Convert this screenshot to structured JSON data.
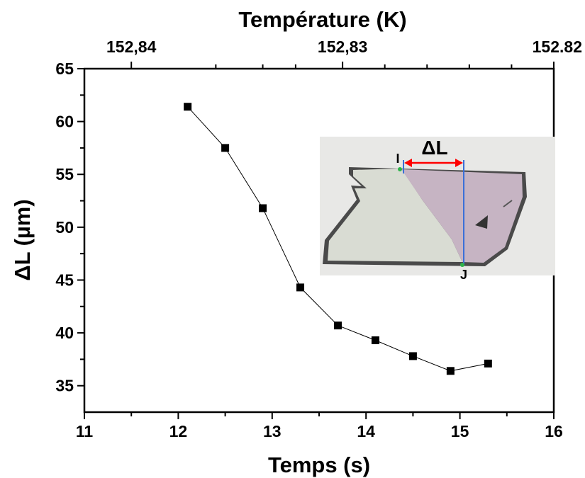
{
  "chart_data": {
    "type": "line",
    "xlabel": "Temps (s)",
    "ylabel": "ΔL (µm)",
    "top_axis_label": "Température (K)",
    "xlim": [
      11,
      16
    ],
    "ylim": [
      32.5,
      65
    ],
    "x_ticks": [
      11,
      12,
      13,
      14,
      15,
      16
    ],
    "y_ticks": [
      35,
      40,
      45,
      50,
      55,
      60,
      65
    ],
    "top_ticks": [
      {
        "x": 11.5,
        "label": "152,84"
      },
      {
        "x": 13.75,
        "label": "152,83"
      },
      {
        "x": 16.0,
        "label": "152.82"
      }
    ],
    "series": [
      {
        "x": [
          12.1,
          12.5,
          12.9,
          13.3,
          13.7,
          14.1,
          14.5,
          14.9,
          15.3
        ],
        "y": [
          61.4,
          57.5,
          51.8,
          44.3,
          40.7,
          39.3,
          37.8,
          36.4,
          37.1
        ]
      }
    ],
    "marker": "square",
    "line_color": "#000000",
    "grid": false,
    "legend": "none"
  },
  "inset": {
    "label": "ΔL",
    "point_i": "I",
    "point_j": "J",
    "arrow_color": "#ff0000",
    "line_color": "#3a6fd8"
  }
}
